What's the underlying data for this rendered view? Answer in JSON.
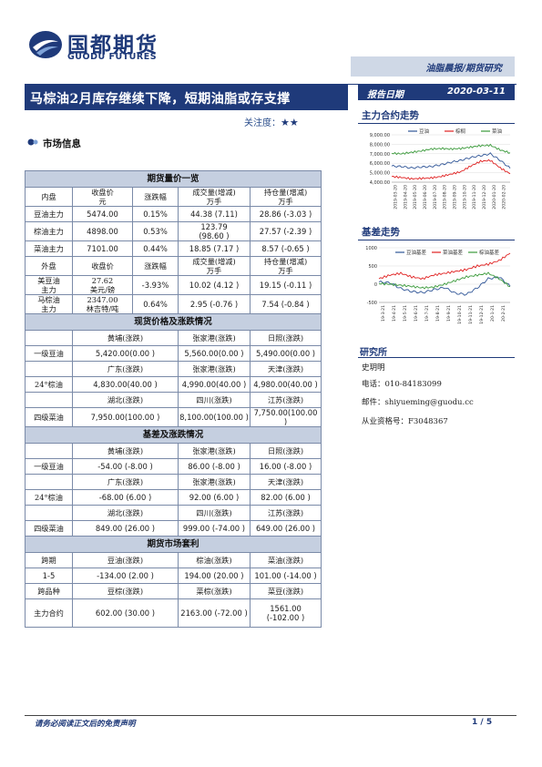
{
  "brand": {
    "name_cn": "国都期货",
    "name_en": "GUODU FUTURES"
  },
  "report_type": "油脂晨报/期货研究",
  "title": "马棕油2月库存继续下降，短期油脂或存支撑",
  "report_date_label": "报告日期",
  "report_date": "2020-03-11",
  "attention_label": "关注度：",
  "attention_stars": "★★",
  "market_info_label": "市场信息",
  "table": {
    "futures_title": "期货量价一览",
    "domestic_header": [
      "内盘",
      "收盘价\n元",
      "涨跌幅",
      "成交量(增减)\n万手",
      "持仓量(增减)\n万手"
    ],
    "domestic_rows": [
      [
        "豆油主力",
        "5474.00",
        "0.15%",
        "44.38 (7.11)",
        "28.86 (-3.03 )"
      ],
      [
        "棕油主力",
        "4898.00",
        "0.53%",
        "123.79\n(98.60 )",
        "27.57 (-2.39 )"
      ],
      [
        "菜油主力",
        "7101.00",
        "0.44%",
        "18.85 (7.17 )",
        "8.57 (-0.65 )"
      ]
    ],
    "foreign_header": [
      "外盘",
      "收盘价",
      "涨跌幅",
      "成交量(增减)\n万手",
      "持仓量(增减)\n万手"
    ],
    "foreign_rows": [
      [
        "美豆油\n主力",
        "27.62\n美元/磅",
        "-3.93%",
        "10.02 (4.12 )",
        "19.15 (-0.11 )"
      ],
      [
        "马棕油\n主力",
        "2347.00\n林吉特/吨",
        "0.64%",
        "2.95 (-0.76 )",
        "7.54 (-0.84 )"
      ]
    ],
    "spot_title": "现货价格及涨跌情况",
    "spot_blocks": [
      {
        "product": "一级豆油",
        "regions": [
          "黄埔(涨跌)",
          "张家港(涨跌)",
          "日照(涨跌)"
        ],
        "values": [
          "5,420.00(0.00 )",
          "5,560.00(0.00 )",
          "5,490.00(0.00 )"
        ]
      },
      {
        "product": "24°棕油",
        "regions": [
          "广东(涨跌)",
          "张家港(涨跌)",
          "天津(涨跌)"
        ],
        "values": [
          "4,830.00(40.00 )",
          "4,990.00(40.00 )",
          "4,980.00(40.00 )"
        ]
      },
      {
        "product": "四级菜油",
        "regions": [
          "湖北(涨跌)",
          "四川(涨跌)",
          "江苏(涨跌)"
        ],
        "values": [
          "7,950.00(100.00 )",
          "8,100.00(100.00 )",
          "7,750.00(100.00 )"
        ]
      }
    ],
    "basis_title": "基差及涨跌情况",
    "basis_blocks": [
      {
        "product": "一级豆油",
        "regions": [
          "黄埔(涨跌)",
          "张家港(涨跌)",
          "日照(涨跌)"
        ],
        "values": [
          "-54.00 (-8.00 )",
          "86.00 (-8.00 )",
          "16.00 (-8.00 )"
        ]
      },
      {
        "product": "24°棕油",
        "regions": [
          "广东(涨跌)",
          "张家港(涨跌)",
          "天津(涨跌)"
        ],
        "values": [
          "-68.00 (6.00 )",
          "92.00 (6.00 )",
          "82.00 (6.00 )"
        ]
      },
      {
        "product": "四级菜油",
        "regions": [
          "湖北(涨跌)",
          "四川(涨跌)",
          "江苏(涨跌)"
        ],
        "values": [
          "849.00 (26.00 )",
          "999.00 (-74.00 )",
          "649.00 (26.00 )"
        ]
      }
    ],
    "arb_title": "期货市场套利",
    "arb_header": [
      "跨期",
      "豆油(涨跌)",
      "棕油(涨跌)",
      "菜油(涨跌)"
    ],
    "arb_row": [
      "1-5",
      "-134.00 (2.00 )",
      "194.00 (20.00 )",
      "101.00    (-14.00 )"
    ],
    "cross_header": [
      "跨品种",
      "豆棕(涨跌)",
      "菜棕(涨跌)",
      "菜豆(涨跌)"
    ],
    "cross_row": [
      "主力合约",
      "602.00 (30.00 )",
      "2163.00 (-72.00 )",
      "1561.00\n(-102.00 )"
    ]
  },
  "side": {
    "chart1_title": "主力合约走势",
    "chart2_title": "基差走势",
    "research_title": "研究所",
    "analyst": "史玥明",
    "phone": "电话：010-84183099",
    "email": "邮件：shiyueming@guodu.cc",
    "license": "从业资格号：F3048367"
  },
  "chart_data": [
    {
      "type": "line",
      "title": "主力合约走势",
      "legend": [
        "豆油",
        "棕榈",
        "菜油"
      ],
      "legend_placement": "top",
      "colors": [
        "#2f5597",
        "#e02020",
        "#3a9a3a"
      ],
      "yticks": [
        "9,000.00",
        "8,000.00",
        "7,000.00",
        "6,000.00",
        "5,000.00",
        "4,000.00"
      ],
      "ylim": [
        4000,
        9000
      ],
      "xticks": [
        "2019-03-20",
        "2019-04-20",
        "2019-05-20",
        "2019-06-20",
        "2019-07-20",
        "2019-08-20",
        "2019-09-20",
        "2019-10-20",
        "2019-11-20",
        "2019-12-20",
        "2020-01-20",
        "2020-02-20"
      ],
      "series": [
        {
          "name": "豆油",
          "values": [
            5700,
            5650,
            5500,
            5600,
            5650,
            5850,
            6100,
            6300,
            6600,
            6800,
            7000,
            6300,
            5474
          ]
        },
        {
          "name": "棕榈",
          "values": [
            4600,
            4500,
            4350,
            4400,
            4450,
            4600,
            4850,
            5100,
            5700,
            6200,
            6300,
            5500,
            4898
          ]
        },
        {
          "name": "菜油",
          "values": [
            7050,
            7000,
            7150,
            7300,
            7500,
            7550,
            7500,
            7550,
            7700,
            7850,
            7900,
            7400,
            7101
          ]
        }
      ]
    },
    {
      "type": "line",
      "title": "基差走势",
      "legend": [
        "豆油基差",
        "菜油基差",
        "棕油基差"
      ],
      "legend_placement": "top",
      "colors": [
        "#2f5597",
        "#e02020",
        "#3a9a3a"
      ],
      "yticks": [
        "1000",
        "500",
        "0",
        "-500"
      ],
      "ylim": [
        -500,
        1000
      ],
      "xticks": [
        "19-3-21",
        "19-4-21",
        "19-5-21",
        "19-6-21",
        "19-7-21",
        "19-8-21",
        "19-9-21",
        "19-10-21",
        "19-11-21",
        "19-12-21",
        "20-1-21",
        "20-2-21"
      ],
      "series": [
        {
          "name": "豆油基差",
          "values": [
            60,
            40,
            -120,
            -200,
            -230,
            -150,
            -90,
            -250,
            -280,
            -100,
            150,
            200,
            -54
          ]
        },
        {
          "name": "菜油基差",
          "values": [
            150,
            250,
            300,
            200,
            150,
            250,
            300,
            350,
            400,
            500,
            550,
            650,
            849
          ]
        },
        {
          "name": "棕油基差",
          "values": [
            20,
            0,
            -30,
            -60,
            -100,
            -80,
            0,
            100,
            200,
            250,
            300,
            150,
            -68
          ]
        }
      ]
    }
  ],
  "footer": {
    "disclaimer": "请务必阅读正文后的免责声明",
    "page": "1 / 5"
  }
}
